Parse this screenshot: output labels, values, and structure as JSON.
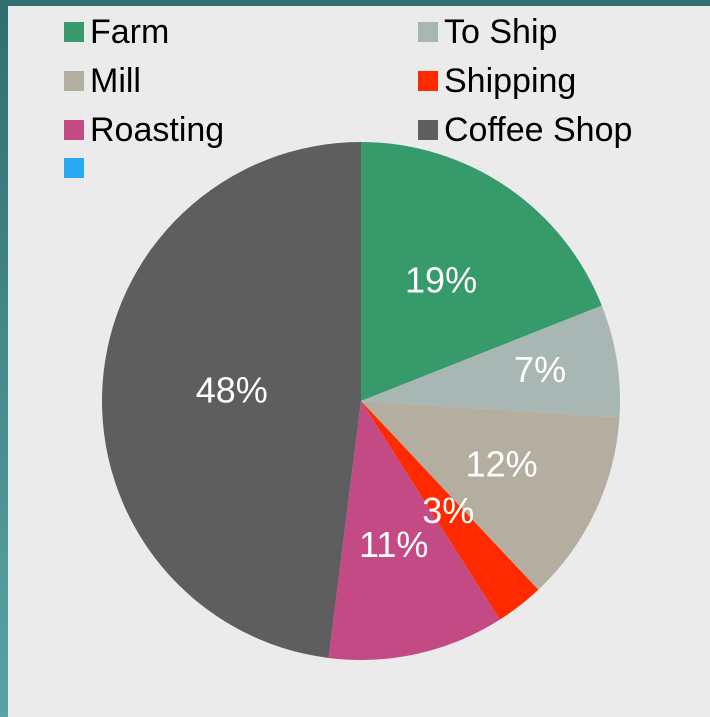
{
  "chart_data": {
    "type": "pie",
    "categories": [
      "Farm",
      "To Ship",
      "Mill",
      "Shipping",
      "Roasting",
      "Coffee Shop",
      ""
    ],
    "values": [
      19,
      7,
      12,
      3,
      11,
      48,
      0
    ],
    "data_labels": [
      "19%",
      "7%",
      "12%",
      "3%",
      "11%",
      "48%",
      ""
    ],
    "colors": [
      "#379a6a",
      "#a8b6b4",
      "#b4aea0",
      "#ff2a00",
      "#c44a85",
      "#5e5e5e",
      "#29aaf0"
    ],
    "legend_position": "top"
  },
  "legend": {
    "items": [
      {
        "label": "Farm",
        "color": "#379a6a"
      },
      {
        "label": "To Ship",
        "color": "#a8b6b4"
      },
      {
        "label": "Mill",
        "color": "#b4aea0"
      },
      {
        "label": "Shipping",
        "color": "#ff2a00"
      },
      {
        "label": "Roasting",
        "color": "#c44a85"
      },
      {
        "label": "Coffee Shop",
        "color": "#5e5e5e"
      },
      {
        "label": "",
        "color": "#29aaf0"
      }
    ]
  }
}
